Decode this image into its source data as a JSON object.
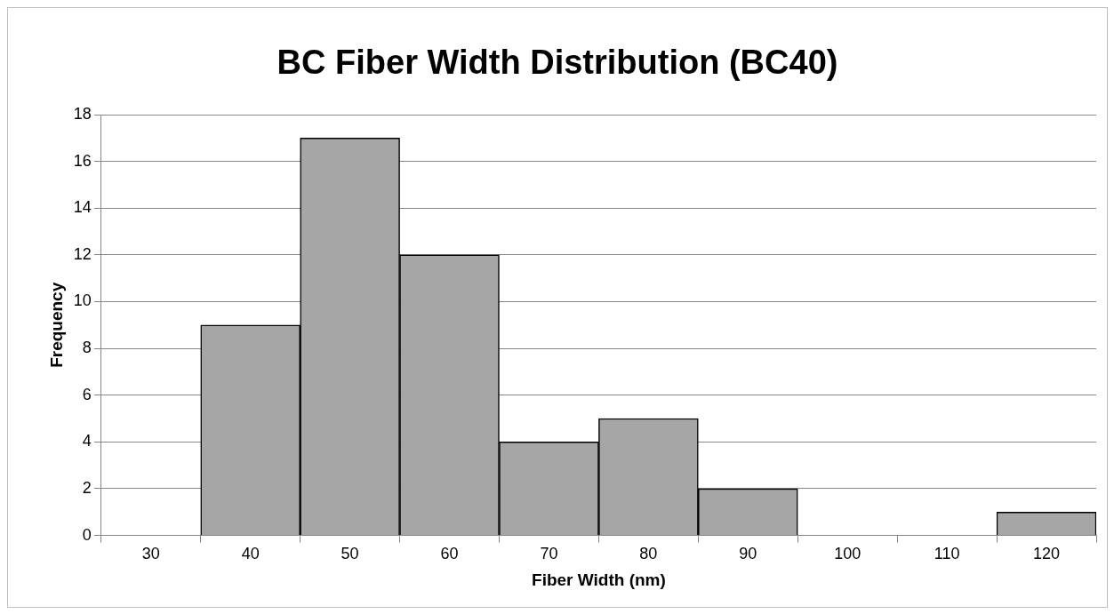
{
  "chart_data": {
    "type": "bar",
    "title": "BC Fiber Width Distribution (BC40)",
    "xlabel": "Fiber Width (nm)",
    "ylabel": "Frequency",
    "categories": [
      "30",
      "40",
      "50",
      "60",
      "70",
      "80",
      "90",
      "100",
      "110",
      "120"
    ],
    "values": [
      0,
      9,
      17,
      12,
      4,
      5,
      2,
      0,
      0,
      1
    ],
    "color": "#a6a6a6",
    "ylim": [
      0,
      18
    ],
    "yticks": [
      0,
      2,
      4,
      6,
      8,
      10,
      12,
      14,
      16,
      18
    ],
    "grid": "y"
  }
}
